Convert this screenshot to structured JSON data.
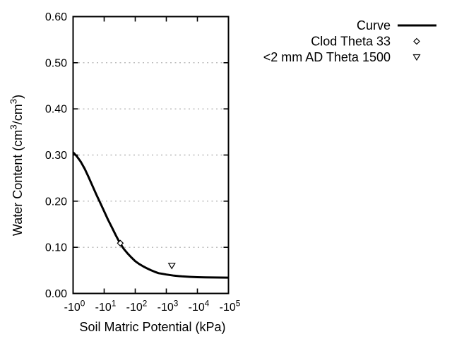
{
  "page": {
    "background": "#ffffff"
  },
  "chart_data": {
    "type": "line",
    "title": "",
    "xlabel": "Soil Matric Potential (kPa)",
    "ylabel": "Water Content (cm³/cm³)",
    "x_scale": "negative-log10",
    "x_decades": [
      0,
      1,
      2,
      3,
      4,
      5
    ],
    "x_tick_labels": [
      "-10⁰",
      "-10¹",
      "-10²",
      "-10³",
      "-10⁴",
      "-10⁵"
    ],
    "ylim": [
      0.0,
      0.6
    ],
    "y_tick_values": [
      0.0,
      0.1,
      0.2,
      0.3,
      0.4,
      0.5,
      0.6
    ],
    "y_tick_labels": [
      "0.00",
      "0.10",
      "0.20",
      "0.30",
      "0.40",
      "0.50",
      "0.60"
    ],
    "grid": {
      "horizontal_dotted_at": [
        0.1,
        0.2,
        0.3,
        0.4,
        0.5
      ],
      "vertical": false,
      "color": "#a8a8a8"
    },
    "colors": {
      "background": "#ffffff",
      "axis": "#000000",
      "series": "#000000"
    },
    "legend": {
      "position": "top-right-outside"
    },
    "series": [
      {
        "name": "Curve",
        "kind": "line",
        "marker": "none",
        "points": [
          [
            -1.0,
            0.306
          ],
          [
            -1.33,
            0.297
          ],
          [
            -1.78,
            0.285
          ],
          [
            -2.37,
            0.27
          ],
          [
            -3.16,
            0.252
          ],
          [
            -4.22,
            0.233
          ],
          [
            -5.62,
            0.214
          ],
          [
            -7.5,
            0.196
          ],
          [
            -10,
            0.178
          ],
          [
            -13.3,
            0.16
          ],
          [
            -17.8,
            0.143
          ],
          [
            -23.7,
            0.126
          ],
          [
            -31.6,
            0.11
          ],
          [
            -42.2,
            0.097
          ],
          [
            -56.2,
            0.087
          ],
          [
            -75,
            0.078
          ],
          [
            -100,
            0.07
          ],
          [
            -133,
            0.064
          ],
          [
            -178,
            0.059
          ],
          [
            -237,
            0.0545
          ],
          [
            -316,
            0.0505
          ],
          [
            -422,
            0.047
          ],
          [
            -562,
            0.044
          ],
          [
            -750,
            0.0425
          ],
          [
            -1000,
            0.041
          ],
          [
            -1780,
            0.0385
          ],
          [
            -3160,
            0.037
          ],
          [
            -5620,
            0.036
          ],
          [
            -10000,
            0.0352
          ],
          [
            -17800,
            0.0348
          ],
          [
            -31600,
            0.0346
          ],
          [
            -56200,
            0.0344
          ],
          [
            -100000,
            0.0343
          ]
        ]
      },
      {
        "name": "Clod Theta 33",
        "kind": "scatter",
        "marker": "diamond-open",
        "points": [
          [
            -33,
            0.109
          ]
        ]
      },
      {
        "name": "<2 mm AD Theta 1500",
        "kind": "scatter",
        "marker": "triangle-down-open",
        "points": [
          [
            -1500,
            0.06
          ]
        ]
      }
    ]
  }
}
